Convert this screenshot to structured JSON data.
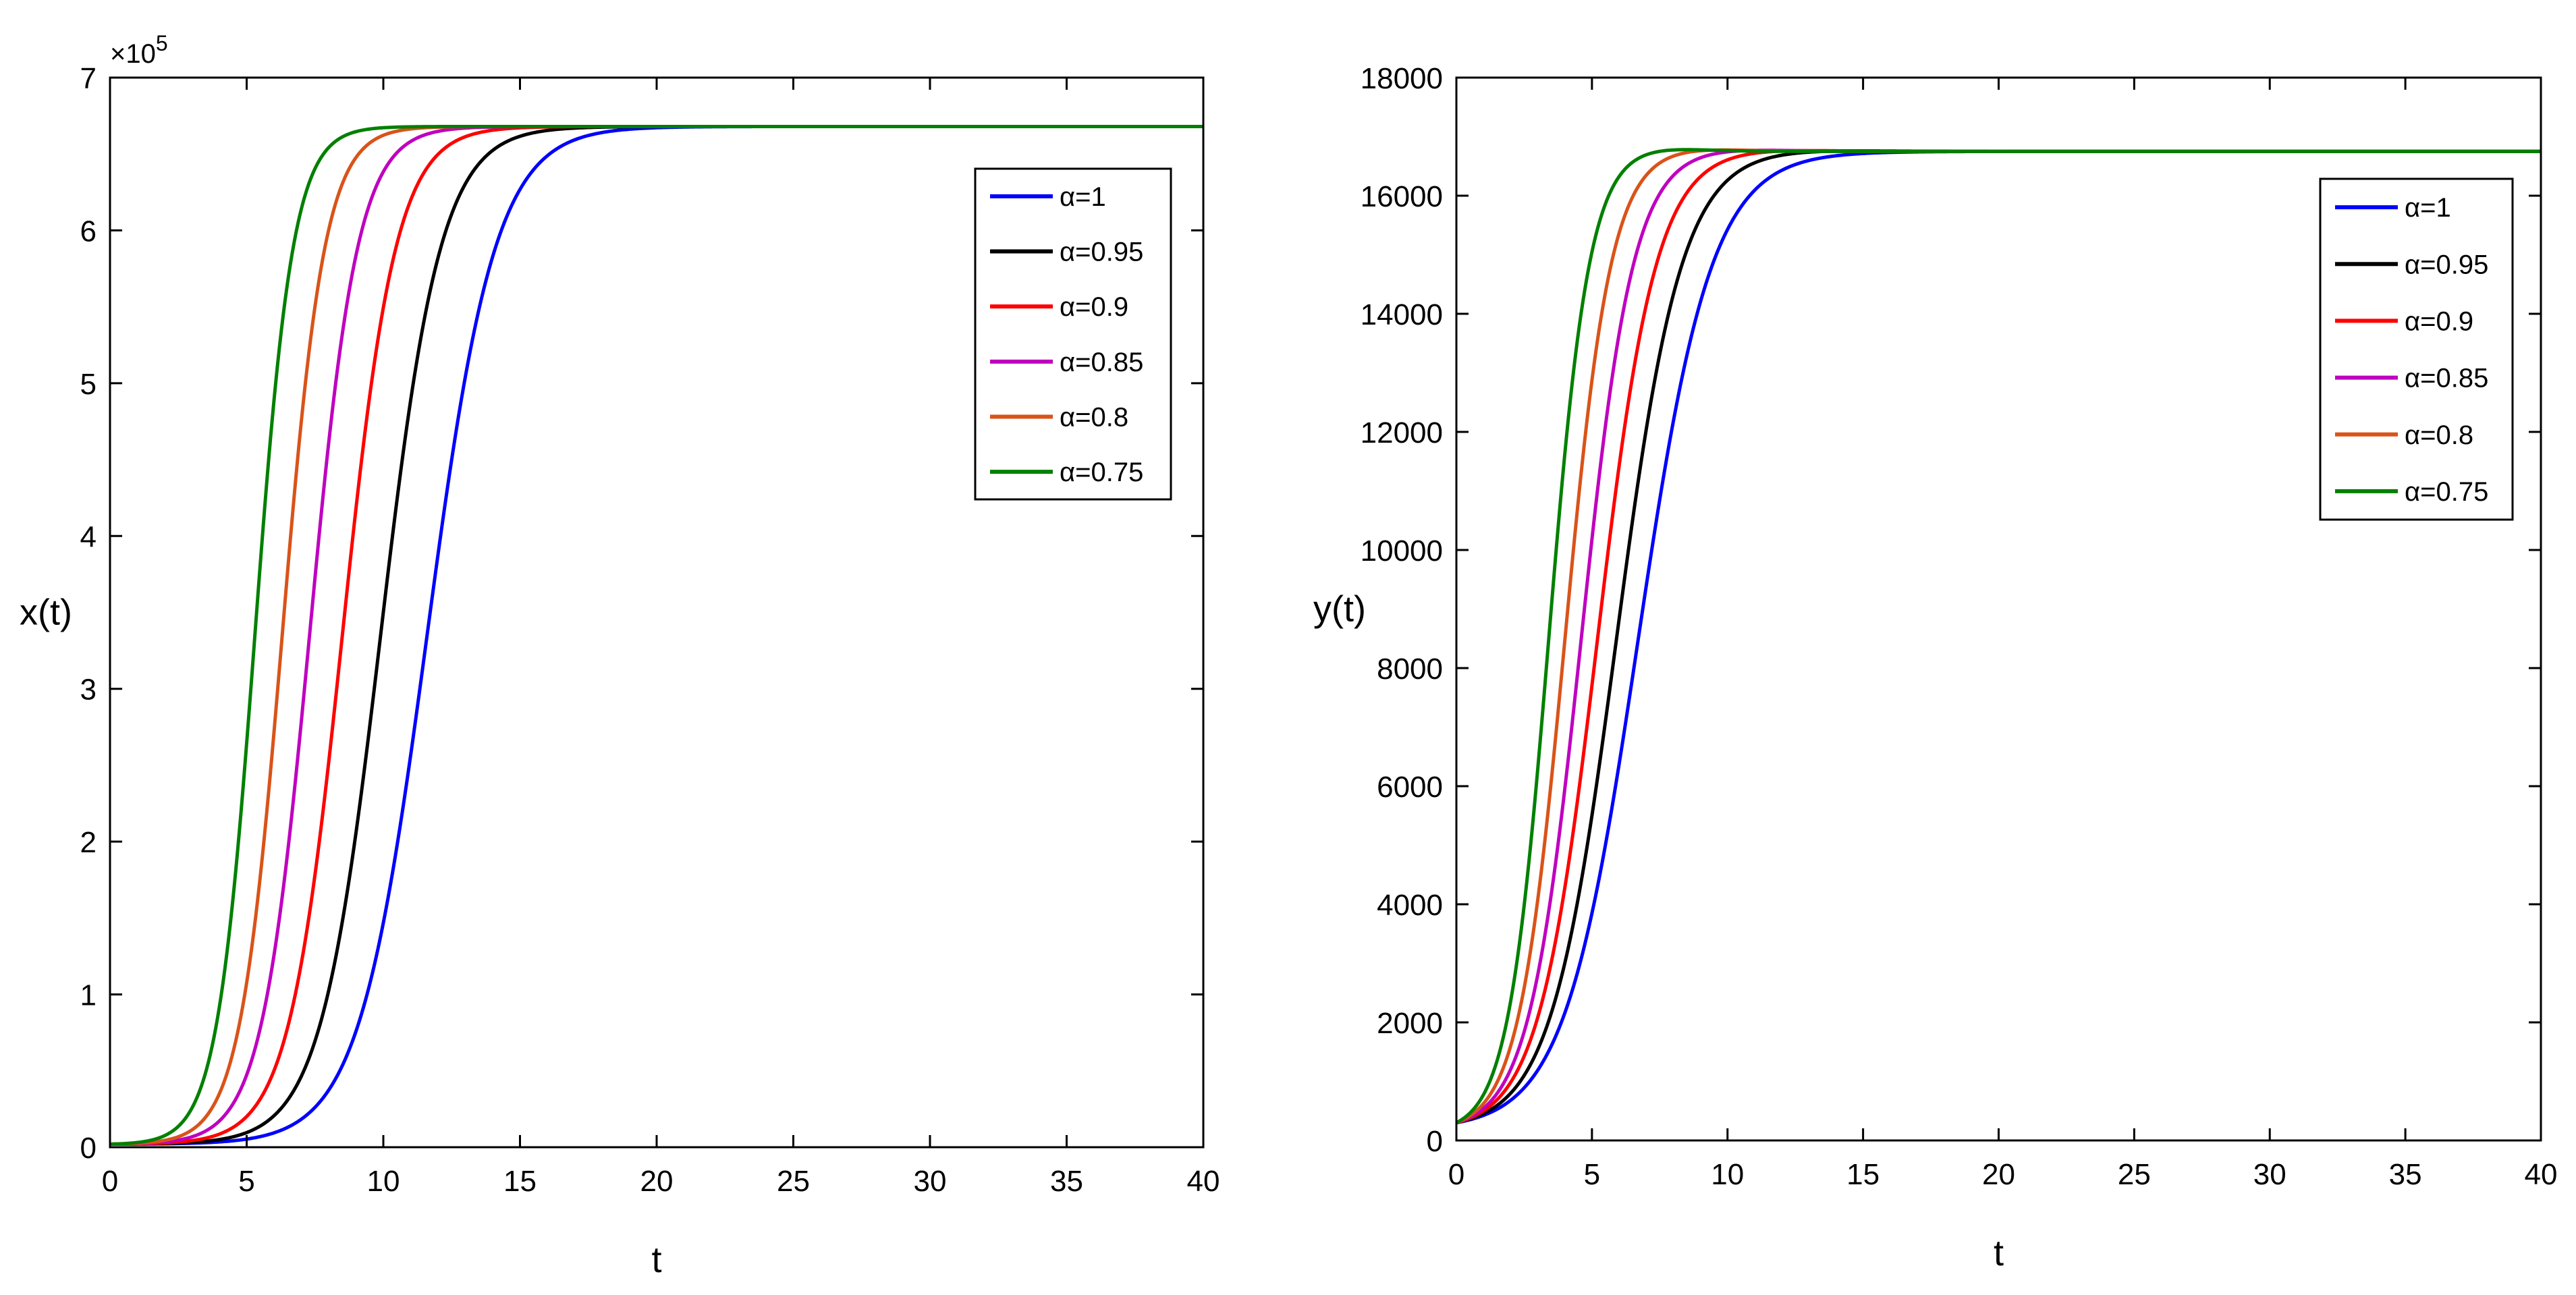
{
  "figure": {
    "panels": 2
  },
  "chart_data": [
    {
      "type": "line",
      "xlabel": "t",
      "ylabel": "x(t)",
      "xlim": [
        0,
        40
      ],
      "ylim": [
        0,
        700000
      ],
      "xticks": [
        0,
        5,
        10,
        15,
        20,
        25,
        30,
        35,
        40
      ],
      "xtick_labels": [
        "0",
        "5",
        "10",
        "15",
        "20",
        "25",
        "30",
        "35",
        "40"
      ],
      "yticks": [
        0,
        100000,
        200000,
        300000,
        400000,
        500000,
        600000,
        700000
      ],
      "ytick_labels": [
        "0",
        "1",
        "2",
        "3",
        "4",
        "5",
        "6",
        "7"
      ],
      "exponent": {
        "prefix": "×10",
        "power": "5"
      },
      "legend_position": "top-right",
      "series": [
        {
          "name": "α=1",
          "color": "#0000ff",
          "model": "logistic",
          "y0": 2000,
          "K": 668000,
          "midpoint": 11.6,
          "width": 1.25
        },
        {
          "name": "α=0.95",
          "color": "#000000",
          "model": "logistic",
          "y0": 2000,
          "K": 668000,
          "midpoint": 9.9,
          "width": 1.1
        },
        {
          "name": "α=0.9",
          "color": "#ff0000",
          "model": "logistic",
          "y0": 2000,
          "K": 668000,
          "midpoint": 8.5,
          "width": 0.98
        },
        {
          "name": "α=0.85",
          "color": "#bf00bf",
          "model": "logistic",
          "y0": 2000,
          "K": 668000,
          "midpoint": 7.3,
          "width": 0.88
        },
        {
          "name": "α=0.8",
          "color": "#d95319",
          "model": "logistic",
          "y0": 2000,
          "K": 668000,
          "midpoint": 6.3,
          "width": 0.78
        },
        {
          "name": "α=0.75",
          "color": "#008000",
          "model": "logistic",
          "y0": 2000,
          "K": 668000,
          "midpoint": 5.3,
          "width": 0.7
        }
      ]
    },
    {
      "type": "line",
      "xlabel": "t",
      "ylabel": "y(t)",
      "xlim": [
        0,
        40
      ],
      "ylim": [
        0,
        18000
      ],
      "xticks": [
        0,
        5,
        10,
        15,
        20,
        25,
        30,
        35,
        40
      ],
      "xtick_labels": [
        "0",
        "5",
        "10",
        "15",
        "20",
        "25",
        "30",
        "35",
        "40"
      ],
      "yticks": [
        0,
        2000,
        4000,
        6000,
        8000,
        10000,
        12000,
        14000,
        16000,
        18000
      ],
      "ytick_labels": [
        "0",
        "2000",
        "4000",
        "6000",
        "8000",
        "10000",
        "12000",
        "14000",
        "16000",
        "18000"
      ],
      "legend_position": "top-right",
      "series": [
        {
          "name": "α=1",
          "color": "#0000ff",
          "model": "logistic",
          "y0": 300,
          "K": 16750,
          "midpoint": 6.7,
          "width": 1.35,
          "overshoot": 0
        },
        {
          "name": "α=0.95",
          "color": "#000000",
          "model": "logistic",
          "y0": 300,
          "K": 16750,
          "midpoint": 5.9,
          "width": 1.2,
          "overshoot": 40
        },
        {
          "name": "α=0.9",
          "color": "#ff0000",
          "model": "logistic",
          "y0": 300,
          "K": 16750,
          "midpoint": 5.2,
          "width": 1.08,
          "overshoot": 50
        },
        {
          "name": "α=0.85",
          "color": "#bf00bf",
          "model": "logistic",
          "y0": 300,
          "K": 16750,
          "midpoint": 4.6,
          "width": 0.96,
          "overshoot": 60
        },
        {
          "name": "α=0.8",
          "color": "#d95319",
          "model": "logistic",
          "y0": 300,
          "K": 16750,
          "midpoint": 4.0,
          "width": 0.85,
          "overshoot": 70
        },
        {
          "name": "α=0.75",
          "color": "#008000",
          "model": "logistic",
          "y0": 300,
          "K": 16750,
          "midpoint": 3.4,
          "width": 0.75,
          "overshoot": 80
        }
      ]
    }
  ]
}
